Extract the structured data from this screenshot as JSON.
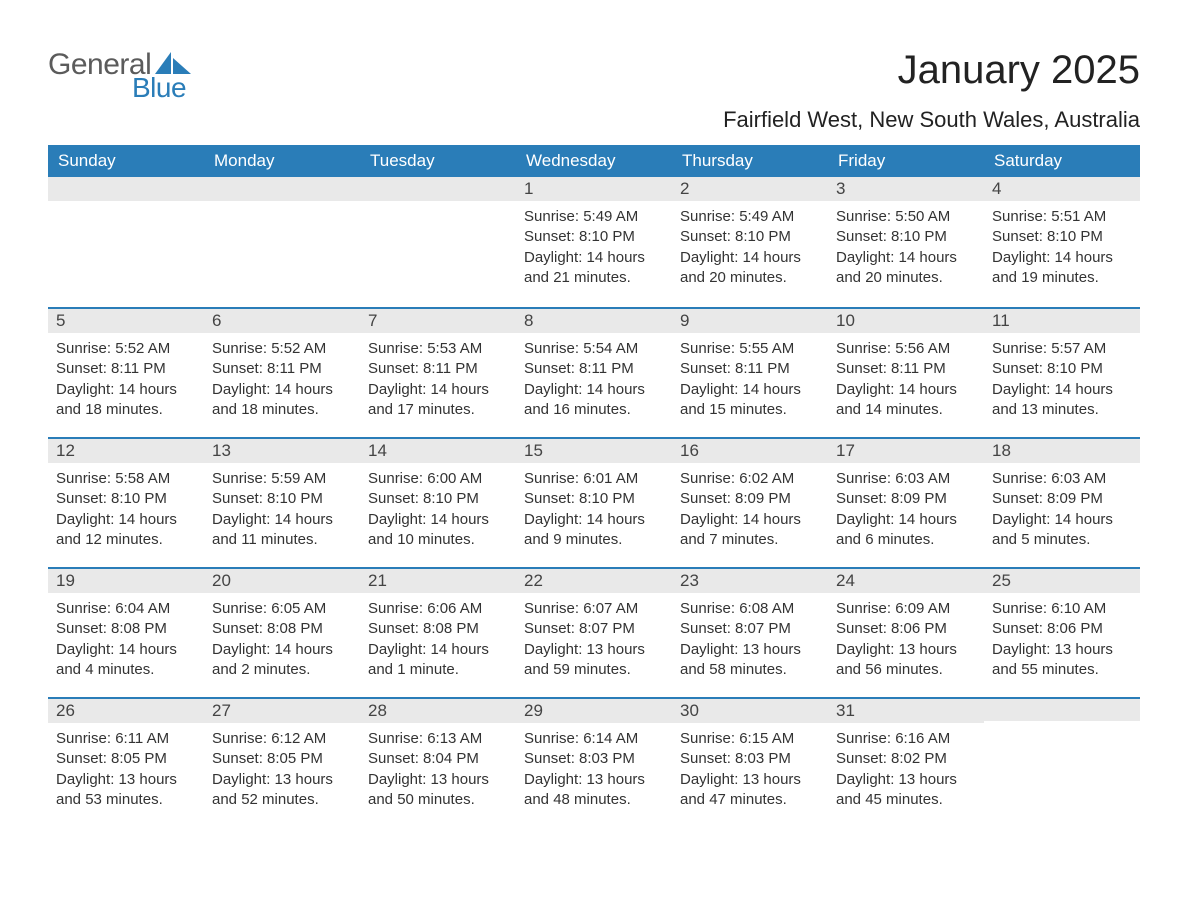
{
  "logo": {
    "text_general": "General",
    "text_blue": "Blue",
    "brand_color": "#2a7db8"
  },
  "title": "January 2025",
  "location": "Fairfield West, New South Wales, Australia",
  "colors": {
    "header_bg": "#2a7db8",
    "header_text": "#ffffff",
    "daynum_bg": "#e9e9e9",
    "daynum_border": "#2a7db8",
    "body_text": "#333333",
    "page_bg": "#ffffff"
  },
  "fonts": {
    "title_size_pt": 30,
    "location_size_pt": 17,
    "weekday_size_pt": 13,
    "body_size_pt": 11
  },
  "weekdays": [
    "Sunday",
    "Monday",
    "Tuesday",
    "Wednesday",
    "Thursday",
    "Friday",
    "Saturday"
  ],
  "labels": {
    "sunrise": "Sunrise",
    "sunset": "Sunset",
    "daylight": "Daylight"
  },
  "weeks": [
    [
      null,
      null,
      null,
      {
        "n": "1",
        "sunrise": "5:49 AM",
        "sunset": "8:10 PM",
        "daylight": "14 hours and 21 minutes."
      },
      {
        "n": "2",
        "sunrise": "5:49 AM",
        "sunset": "8:10 PM",
        "daylight": "14 hours and 20 minutes."
      },
      {
        "n": "3",
        "sunrise": "5:50 AM",
        "sunset": "8:10 PM",
        "daylight": "14 hours and 20 minutes."
      },
      {
        "n": "4",
        "sunrise": "5:51 AM",
        "sunset": "8:10 PM",
        "daylight": "14 hours and 19 minutes."
      }
    ],
    [
      {
        "n": "5",
        "sunrise": "5:52 AM",
        "sunset": "8:11 PM",
        "daylight": "14 hours and 18 minutes."
      },
      {
        "n": "6",
        "sunrise": "5:52 AM",
        "sunset": "8:11 PM",
        "daylight": "14 hours and 18 minutes."
      },
      {
        "n": "7",
        "sunrise": "5:53 AM",
        "sunset": "8:11 PM",
        "daylight": "14 hours and 17 minutes."
      },
      {
        "n": "8",
        "sunrise": "5:54 AM",
        "sunset": "8:11 PM",
        "daylight": "14 hours and 16 minutes."
      },
      {
        "n": "9",
        "sunrise": "5:55 AM",
        "sunset": "8:11 PM",
        "daylight": "14 hours and 15 minutes."
      },
      {
        "n": "10",
        "sunrise": "5:56 AM",
        "sunset": "8:11 PM",
        "daylight": "14 hours and 14 minutes."
      },
      {
        "n": "11",
        "sunrise": "5:57 AM",
        "sunset": "8:10 PM",
        "daylight": "14 hours and 13 minutes."
      }
    ],
    [
      {
        "n": "12",
        "sunrise": "5:58 AM",
        "sunset": "8:10 PM",
        "daylight": "14 hours and 12 minutes."
      },
      {
        "n": "13",
        "sunrise": "5:59 AM",
        "sunset": "8:10 PM",
        "daylight": "14 hours and 11 minutes."
      },
      {
        "n": "14",
        "sunrise": "6:00 AM",
        "sunset": "8:10 PM",
        "daylight": "14 hours and 10 minutes."
      },
      {
        "n": "15",
        "sunrise": "6:01 AM",
        "sunset": "8:10 PM",
        "daylight": "14 hours and 9 minutes."
      },
      {
        "n": "16",
        "sunrise": "6:02 AM",
        "sunset": "8:09 PM",
        "daylight": "14 hours and 7 minutes."
      },
      {
        "n": "17",
        "sunrise": "6:03 AM",
        "sunset": "8:09 PM",
        "daylight": "14 hours and 6 minutes."
      },
      {
        "n": "18",
        "sunrise": "6:03 AM",
        "sunset": "8:09 PM",
        "daylight": "14 hours and 5 minutes."
      }
    ],
    [
      {
        "n": "19",
        "sunrise": "6:04 AM",
        "sunset": "8:08 PM",
        "daylight": "14 hours and 4 minutes."
      },
      {
        "n": "20",
        "sunrise": "6:05 AM",
        "sunset": "8:08 PM",
        "daylight": "14 hours and 2 minutes."
      },
      {
        "n": "21",
        "sunrise": "6:06 AM",
        "sunset": "8:08 PM",
        "daylight": "14 hours and 1 minute."
      },
      {
        "n": "22",
        "sunrise": "6:07 AM",
        "sunset": "8:07 PM",
        "daylight": "13 hours and 59 minutes."
      },
      {
        "n": "23",
        "sunrise": "6:08 AM",
        "sunset": "8:07 PM",
        "daylight": "13 hours and 58 minutes."
      },
      {
        "n": "24",
        "sunrise": "6:09 AM",
        "sunset": "8:06 PM",
        "daylight": "13 hours and 56 minutes."
      },
      {
        "n": "25",
        "sunrise": "6:10 AM",
        "sunset": "8:06 PM",
        "daylight": "13 hours and 55 minutes."
      }
    ],
    [
      {
        "n": "26",
        "sunrise": "6:11 AM",
        "sunset": "8:05 PM",
        "daylight": "13 hours and 53 minutes."
      },
      {
        "n": "27",
        "sunrise": "6:12 AM",
        "sunset": "8:05 PM",
        "daylight": "13 hours and 52 minutes."
      },
      {
        "n": "28",
        "sunrise": "6:13 AM",
        "sunset": "8:04 PM",
        "daylight": "13 hours and 50 minutes."
      },
      {
        "n": "29",
        "sunrise": "6:14 AM",
        "sunset": "8:03 PM",
        "daylight": "13 hours and 48 minutes."
      },
      {
        "n": "30",
        "sunrise": "6:15 AM",
        "sunset": "8:03 PM",
        "daylight": "13 hours and 47 minutes."
      },
      {
        "n": "31",
        "sunrise": "6:16 AM",
        "sunset": "8:02 PM",
        "daylight": "13 hours and 45 minutes."
      },
      null
    ]
  ]
}
